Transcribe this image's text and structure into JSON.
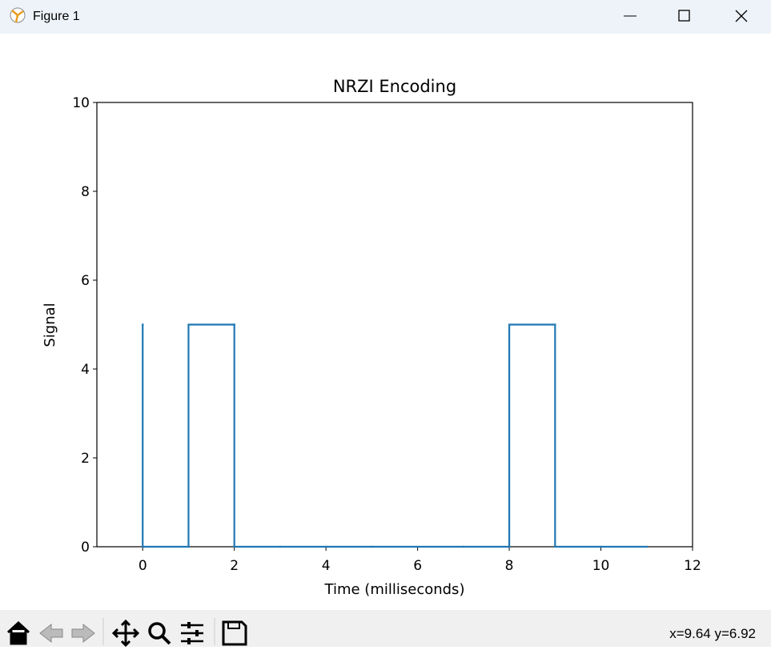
{
  "window": {
    "title": "Figure 1",
    "status": "x=9.64 y=6.92"
  },
  "chart_data": {
    "type": "line",
    "drawstyle": "steps-pre",
    "title": "NRZI Encoding",
    "xlabel": "Time (milliseconds)",
    "ylabel": "Signal",
    "x": [
      0,
      1,
      2,
      3,
      4,
      5,
      6,
      7,
      8,
      9,
      10,
      11
    ],
    "values": [
      5,
      0,
      5,
      0,
      0,
      0,
      0,
      0,
      0,
      5,
      0,
      0
    ],
    "color": "#1f77b4",
    "xlim": [
      -1,
      12
    ],
    "xticks": [
      0,
      2,
      4,
      6,
      8,
      10,
      12
    ],
    "ylim": [
      0,
      10
    ],
    "yticks": [
      0,
      2,
      4,
      6,
      8,
      10
    ],
    "grid": false
  }
}
